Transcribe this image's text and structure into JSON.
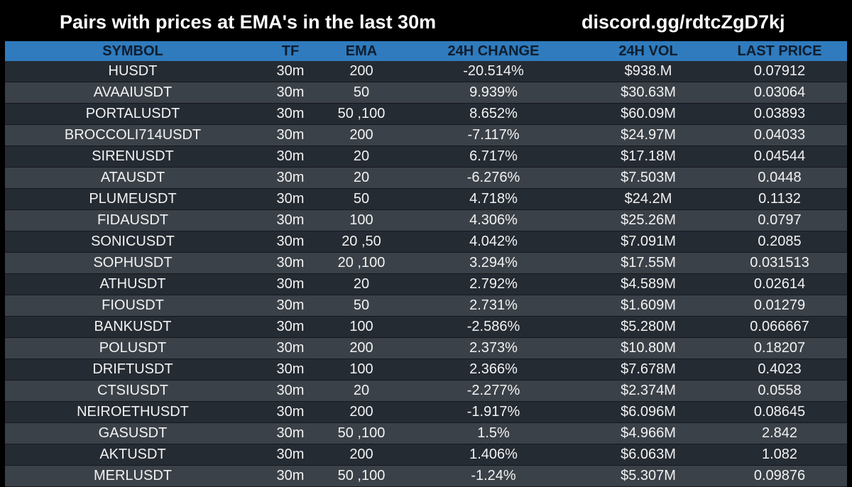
{
  "header": {
    "title": "Pairs with prices at EMA's in the last 30m",
    "discord": "discord.gg/rdtcZgD7kj"
  },
  "colors": {
    "background": "#000000",
    "header_row": "#2f7bbd",
    "row_dark": "#252b33",
    "row_light": "#3b4148",
    "header_text": "#0f1d2e"
  },
  "table": {
    "columns": [
      "SYMBOL",
      "TF",
      "EMA",
      "24H CHANGE",
      "24H VOL",
      "LAST PRICE"
    ],
    "rows": [
      {
        "symbol": "HUSDT",
        "tf": "30m",
        "ema": "200",
        "change": "-20.514%",
        "vol": "$938.M",
        "price": "0.07912"
      },
      {
        "symbol": "AVAAIUSDT",
        "tf": "30m",
        "ema": "50",
        "change": "9.939%",
        "vol": "$30.63M",
        "price": "0.03064"
      },
      {
        "symbol": "PORTALUSDT",
        "tf": "30m",
        "ema": "50 ,100",
        "change": "8.652%",
        "vol": "$60.09M",
        "price": "0.03893"
      },
      {
        "symbol": "BROCCOLI714USDT",
        "tf": "30m",
        "ema": "200",
        "change": "-7.117%",
        "vol": "$24.97M",
        "price": "0.04033"
      },
      {
        "symbol": "SIRENUSDT",
        "tf": "30m",
        "ema": "20",
        "change": "6.717%",
        "vol": "$17.18M",
        "price": "0.04544"
      },
      {
        "symbol": "ATAUSDT",
        "tf": "30m",
        "ema": "20",
        "change": "-6.276%",
        "vol": "$7.503M",
        "price": "0.0448"
      },
      {
        "symbol": "PLUMEUSDT",
        "tf": "30m",
        "ema": "50",
        "change": "4.718%",
        "vol": "$24.2M",
        "price": "0.1132"
      },
      {
        "symbol": "FIDAUSDT",
        "tf": "30m",
        "ema": "100",
        "change": "4.306%",
        "vol": "$25.26M",
        "price": "0.0797"
      },
      {
        "symbol": "SONICUSDT",
        "tf": "30m",
        "ema": "20 ,50",
        "change": "4.042%",
        "vol": "$7.091M",
        "price": "0.2085"
      },
      {
        "symbol": "SOPHUSDT",
        "tf": "30m",
        "ema": "20 ,100",
        "change": "3.294%",
        "vol": "$17.55M",
        "price": "0.031513"
      },
      {
        "symbol": "ATHUSDT",
        "tf": "30m",
        "ema": "20",
        "change": "2.792%",
        "vol": "$4.589M",
        "price": "0.02614"
      },
      {
        "symbol": "FIOUSDT",
        "tf": "30m",
        "ema": "50",
        "change": "2.731%",
        "vol": "$1.609M",
        "price": "0.01279"
      },
      {
        "symbol": "BANKUSDT",
        "tf": "30m",
        "ema": "100",
        "change": "-2.586%",
        "vol": "$5.280M",
        "price": "0.066667"
      },
      {
        "symbol": "POLUSDT",
        "tf": "30m",
        "ema": "200",
        "change": "2.373%",
        "vol": "$10.80M",
        "price": "0.18207"
      },
      {
        "symbol": "DRIFTUSDT",
        "tf": "30m",
        "ema": "100",
        "change": "2.366%",
        "vol": "$7.678M",
        "price": "0.4023"
      },
      {
        "symbol": "CTSIUSDT",
        "tf": "30m",
        "ema": "20",
        "change": "-2.277%",
        "vol": "$2.374M",
        "price": "0.0558"
      },
      {
        "symbol": "NEIROETHUSDT",
        "tf": "30m",
        "ema": "200",
        "change": "-1.917%",
        "vol": "$6.096M",
        "price": "0.08645"
      },
      {
        "symbol": "GASUSDT",
        "tf": "30m",
        "ema": "50 ,100",
        "change": "1.5%",
        "vol": "$4.966M",
        "price": "2.842"
      },
      {
        "symbol": "AKTUSDT",
        "tf": "30m",
        "ema": "200",
        "change": "1.406%",
        "vol": "$6.063M",
        "price": "1.082"
      },
      {
        "symbol": "MERLUSDT",
        "tf": "30m",
        "ema": "50 ,100",
        "change": "-1.24%",
        "vol": "$5.307M",
        "price": "0.09876"
      }
    ]
  }
}
